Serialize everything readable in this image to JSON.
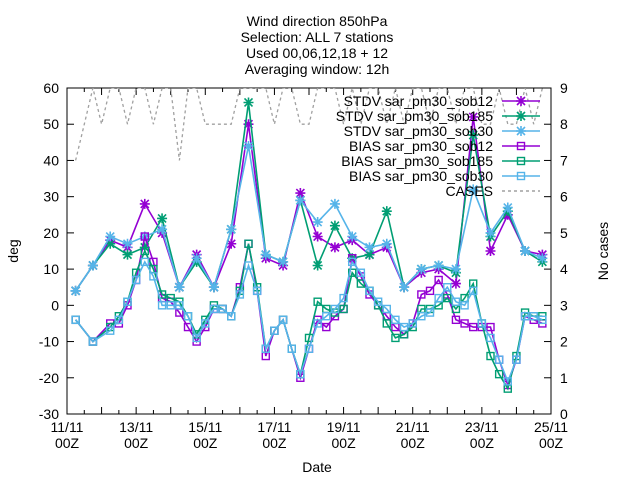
{
  "chart_data": {
    "type": "line",
    "title_lines": [
      "Wind direction 850hPa",
      "Selection: ALL       7 stations",
      "Used 00,06,12,18 + 12",
      "Averaging window: 12h"
    ],
    "xlabel": "Date",
    "ylabel": "deg",
    "y2label": "No cases",
    "xlim": [
      0,
      28
    ],
    "ylim": [
      -30,
      60
    ],
    "y2lim": [
      0,
      9
    ],
    "yticks": [
      -30,
      -20,
      -10,
      0,
      10,
      20,
      30,
      40,
      50,
      60
    ],
    "y2ticks": [
      0,
      1,
      2,
      3,
      4,
      5,
      6,
      7,
      8,
      9
    ],
    "xtick_labels": [
      {
        "x": 0,
        "line1": "11/11",
        "line2": "00Z"
      },
      {
        "x": 4,
        "line1": "13/11",
        "line2": "00Z"
      },
      {
        "x": 8,
        "line1": "15/11",
        "line2": "00Z"
      },
      {
        "x": 12,
        "line1": "17/11",
        "line2": "00Z"
      },
      {
        "x": 16,
        "line1": "19/11",
        "line2": "00Z"
      },
      {
        "x": 20,
        "line1": "21/11",
        "line2": "00Z"
      },
      {
        "x": 24,
        "line1": "23/11",
        "line2": "00Z"
      },
      {
        "x": 28,
        "line1": "25/11",
        "line2": "00Z"
      }
    ],
    "x": [
      0.5,
      1.5,
      2.5,
      3,
      3.5,
      4,
      4.5,
      5,
      5.5,
      6,
      6.5,
      7,
      7.5,
      8,
      8.5,
      9,
      9.5,
      10,
      10.5,
      11,
      11.5,
      12,
      12.5,
      13,
      13.5,
      14,
      14.5,
      15,
      15.5,
      16,
      16.5,
      17,
      17.5,
      18,
      18.5,
      19,
      19.5,
      20,
      20.5,
      21,
      21.5,
      22,
      22.5,
      23,
      23.5,
      24,
      24.5,
      25,
      25.5,
      26,
      26.5,
      27,
      27.5
    ],
    "series": [
      {
        "name": "STDV sar_pm30_sob12",
        "axis": "y1",
        "color": "#9400d3",
        "marker": "star",
        "dash": "",
        "x": [
          0.5,
          1.5,
          2.5,
          3.5,
          4.5,
          5.5,
          6.5,
          7.5,
          8.5,
          9.5,
          10.5,
          11.5,
          12.5,
          13.5,
          14.5,
          15.5,
          16.5,
          17.5,
          18.5,
          19.5,
          20.5,
          21.5,
          22.5,
          23.5,
          24.5,
          25.5,
          26.5,
          27.5
        ],
        "values": [
          4,
          11,
          18,
          16,
          28,
          20,
          5,
          14,
          5,
          17,
          50,
          13,
          11,
          31,
          19,
          16,
          18,
          14,
          16,
          5,
          9,
          10,
          6,
          52,
          15,
          25,
          15,
          14
        ]
      },
      {
        "name": "STDV sar_pm30_sob185",
        "axis": "y1",
        "color": "#009e73",
        "marker": "star",
        "dash": "",
        "x": [
          0.5,
          1.5,
          2.5,
          3.5,
          4.5,
          5.5,
          6.5,
          7.5,
          8.5,
          9.5,
          10.5,
          11.5,
          12.5,
          13.5,
          14.5,
          15.5,
          16.5,
          17.5,
          18.5,
          19.5,
          20.5,
          21.5,
          22.5,
          23.5,
          24.5,
          25.5,
          26.5,
          27.5
        ],
        "values": [
          4,
          11,
          17,
          14,
          16,
          24,
          5,
          12,
          5,
          21,
          56,
          14,
          12,
          29,
          11,
          22,
          13,
          14,
          26,
          5,
          10,
          11,
          9,
          47,
          19,
          26,
          15,
          12
        ]
      },
      {
        "name": "STDV sar_pm30_sob30",
        "axis": "y1",
        "color": "#56b4e9",
        "marker": "star",
        "dash": "",
        "x": [
          0.5,
          1.5,
          2.5,
          3.5,
          4.5,
          5.5,
          6.5,
          7.5,
          8.5,
          9.5,
          10.5,
          11.5,
          12.5,
          13.5,
          14.5,
          15.5,
          16.5,
          17.5,
          18.5,
          19.5,
          20.5,
          21.5,
          22.5,
          23.5,
          24.5,
          25.5,
          26.5,
          27.5
        ],
        "values": [
          4,
          11,
          19,
          17,
          19,
          21,
          5,
          13,
          5,
          21,
          44,
          14,
          12,
          29,
          23,
          28,
          19,
          16,
          17,
          5,
          10,
          11,
          10,
          32,
          20,
          27,
          15,
          13
        ]
      },
      {
        "name": "BIAS sar_pm30_sob12",
        "axis": "y1",
        "color": "#9400d3",
        "marker": "square",
        "dash": "",
        "x": [
          0.5,
          1.5,
          2.5,
          3,
          3.5,
          4,
          4.5,
          5,
          5.5,
          6,
          6.5,
          7,
          7.5,
          8,
          8.5,
          9,
          9.5,
          10,
          10.5,
          11,
          11.5,
          12,
          12.5,
          13,
          13.5,
          14,
          14.5,
          15,
          15.5,
          16,
          16.5,
          17,
          17.5,
          18,
          18.5,
          19,
          19.5,
          20,
          20.5,
          21,
          21.5,
          22,
          22.5,
          23,
          23.5,
          24,
          24.5,
          25,
          25.5,
          26,
          26.5,
          27,
          27.5
        ],
        "values": [
          -4,
          -10,
          -5,
          -5,
          0,
          7,
          19,
          12,
          2,
          1,
          -2,
          -6,
          -10,
          -6,
          -1,
          -1,
          -3,
          5,
          17,
          4,
          -14,
          -7,
          -4,
          -12,
          -20,
          -12,
          -4,
          -6,
          -3,
          -1,
          13,
          8,
          3,
          0,
          -3,
          -6,
          -8,
          -5,
          3,
          4,
          7,
          3,
          -4,
          -5,
          -6,
          -6,
          -6,
          -15,
          -22,
          -15,
          -3,
          -4,
          -5
        ]
      },
      {
        "name": "BIAS sar_pm30_sob185",
        "axis": "y1",
        "color": "#009e73",
        "marker": "square",
        "dash": "",
        "x": [
          0.5,
          1.5,
          2.5,
          3,
          3.5,
          4,
          4.5,
          5,
          5.5,
          6,
          6.5,
          7,
          7.5,
          8,
          8.5,
          9,
          9.5,
          10,
          10.5,
          11,
          11.5,
          12,
          12.5,
          13,
          13.5,
          14,
          14.5,
          15,
          15.5,
          16,
          16.5,
          17,
          17.5,
          18,
          18.5,
          19,
          19.5,
          20,
          20.5,
          21,
          21.5,
          22,
          22.5,
          23,
          23.5,
          24,
          24.5,
          25,
          25.5,
          26,
          26.5,
          27,
          27.5
        ],
        "values": [
          -4,
          -10,
          -6,
          -3,
          1,
          9,
          15,
          10,
          3,
          2,
          1,
          -3,
          -8,
          -4,
          0,
          -1,
          -3,
          4,
          17,
          5,
          -12,
          -7,
          -4,
          -12,
          -19,
          -9,
          1,
          -1,
          -2,
          -1,
          9,
          6,
          4,
          0,
          -5,
          -9,
          -8,
          -6,
          -1,
          -1,
          0,
          2,
          -1,
          2,
          6,
          -5,
          -14,
          -19,
          -23,
          -14,
          -2,
          -3,
          -3
        ]
      },
      {
        "name": "BIAS sar_pm30_sob30",
        "axis": "y1",
        "color": "#56b4e9",
        "marker": "square",
        "dash": "",
        "x": [
          0.5,
          1.5,
          2.5,
          3,
          3.5,
          4,
          4.5,
          5,
          5.5,
          6,
          6.5,
          7,
          7.5,
          8,
          8.5,
          9,
          9.5,
          10,
          10.5,
          11,
          11.5,
          12,
          12.5,
          13,
          13.5,
          14,
          14.5,
          15,
          15.5,
          16,
          16.5,
          17,
          17.5,
          18,
          18.5,
          19,
          19.5,
          20,
          20.5,
          21,
          21.5,
          22,
          22.5,
          23,
          23.5,
          24,
          24.5,
          25,
          25.5,
          26,
          26.5,
          27,
          27.5
        ],
        "values": [
          -4,
          -10,
          -7,
          -4,
          1,
          7,
          12,
          8,
          0,
          0,
          0,
          -3,
          -9,
          -5,
          -1,
          -1,
          -3,
          3,
          11,
          4,
          -12,
          -7,
          -4,
          -12,
          -19,
          -12,
          -5,
          -3,
          -1,
          2,
          12,
          9,
          4,
          1,
          -1,
          -4,
          -6,
          -5,
          -3,
          -2,
          2,
          5,
          1,
          0,
          4,
          -5,
          -9,
          -15,
          -21,
          -15,
          -3,
          -3,
          -4
        ]
      },
      {
        "name": "CASES",
        "axis": "y2",
        "color": "#a0a0a0",
        "marker": "none",
        "dash": "3,3",
        "x": [
          0.5,
          1,
          1.5,
          2,
          2.5,
          3,
          3.5,
          4,
          4.5,
          5,
          5.5,
          6,
          6.5,
          7,
          7.5,
          8,
          8.5,
          9,
          9.5,
          10,
          10.5,
          11,
          11.5,
          12,
          12.5,
          13,
          13.5,
          14,
          14.5,
          15,
          15.5,
          16,
          16.5,
          17,
          17.5,
          18,
          18.5,
          19,
          19.5,
          20,
          20.5,
          21,
          21.5,
          22,
          22.5,
          23,
          23.5,
          24,
          24.5,
          25,
          25.5,
          26,
          26.5,
          27,
          27.5
        ],
        "values": [
          7,
          8,
          9,
          8,
          9,
          9,
          8,
          9,
          9,
          8,
          9,
          9,
          7,
          9,
          9,
          8,
          8,
          8,
          8,
          9,
          9,
          9,
          9,
          8,
          9,
          9,
          8,
          8,
          9,
          9,
          9,
          8,
          9,
          8,
          9,
          9,
          8,
          9,
          8,
          9,
          9,
          8,
          9,
          9,
          8,
          9,
          9,
          8,
          8,
          9,
          8,
          8,
          9,
          8,
          9
        ]
      }
    ],
    "legend_placement": "top-right",
    "grid": false
  }
}
